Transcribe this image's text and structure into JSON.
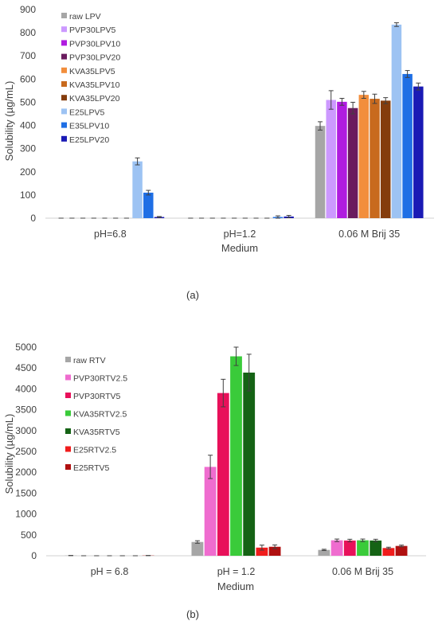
{
  "chart_data": [
    {
      "type": "bar",
      "caption": "(a)",
      "xlabel": "Medium",
      "ylabel": "Solubility (µg/mL)",
      "ylim": [
        0,
        900
      ],
      "yticks": [
        "0",
        "100",
        "200",
        "300",
        "400",
        "500",
        "600",
        "700",
        "800",
        "900"
      ],
      "grid": false,
      "legend": "top-left",
      "categories": [
        "pH=6.8",
        "pH=1.2",
        "0.06 M Brij 35"
      ],
      "series": [
        {
          "name": "raw LPV",
          "color": "#a6a6a6",
          "values": [
            0,
            0,
            398
          ],
          "errors": [
            0,
            0,
            18
          ]
        },
        {
          "name": "PVP30LPV5",
          "color": "#cc99ff",
          "values": [
            0,
            0,
            510
          ],
          "errors": [
            0,
            0,
            40
          ]
        },
        {
          "name": "PVP30LPV10",
          "color": "#b01ce0",
          "values": [
            0,
            0,
            502
          ],
          "errors": [
            0,
            0,
            15
          ]
        },
        {
          "name": "PVP30LPV20",
          "color": "#6a1b5e",
          "values": [
            0,
            0,
            475
          ],
          "errors": [
            0,
            0,
            25
          ]
        },
        {
          "name": "KVA35LPV5",
          "color": "#f28e3c",
          "values": [
            0,
            0,
            532
          ],
          "errors": [
            0,
            0,
            15
          ]
        },
        {
          "name": "KVA35LPV10",
          "color": "#c86a1e",
          "values": [
            0,
            0,
            515
          ],
          "errors": [
            0,
            0,
            20
          ]
        },
        {
          "name": "KVA35LPV20",
          "color": "#843c0c",
          "values": [
            0,
            0,
            507
          ],
          "errors": [
            0,
            0,
            13
          ]
        },
        {
          "name": "E25LPV5",
          "color": "#9dc3f3",
          "values": [
            245,
            0,
            835
          ],
          "errors": [
            15,
            0,
            8
          ]
        },
        {
          "name": "E35LPV10",
          "color": "#1f6fe5",
          "values": [
            110,
            5,
            622
          ],
          "errors": [
            10,
            5,
            15
          ]
        },
        {
          "name": "E25LPV20",
          "color": "#1a1ab5",
          "values": [
            5,
            7,
            568
          ],
          "errors": [
            2,
            5,
            15
          ]
        }
      ]
    },
    {
      "type": "bar",
      "caption": "(b)",
      "xlabel": "Medium",
      "ylabel": "Solubility (µg/mL)",
      "ylim": [
        0,
        5000
      ],
      "yticks": [
        "0",
        "500",
        "1000",
        "1500",
        "2000",
        "2500",
        "3000",
        "3500",
        "4000",
        "4500",
        "5000"
      ],
      "grid": false,
      "legend": "top-left",
      "categories": [
        "pH = 6.8",
        "pH = 1.2",
        "0.06 M Brij 35"
      ],
      "series": [
        {
          "name": "raw RTV",
          "color": "#a6a6a6",
          "values": [
            5,
            330,
            140
          ],
          "errors": [
            2,
            30,
            15
          ]
        },
        {
          "name": "PVP30RTV2.5",
          "color": "#ef6ccf",
          "values": [
            0,
            2130,
            370
          ],
          "errors": [
            0,
            280,
            30
          ]
        },
        {
          "name": "PVP30RTV5",
          "color": "#e8105a",
          "values": [
            0,
            3900,
            365
          ],
          "errors": [
            0,
            330,
            30
          ]
        },
        {
          "name": "KVA35RTV2.5",
          "color": "#3acb3a",
          "values": [
            0,
            4780,
            370
          ],
          "errors": [
            0,
            220,
            30
          ]
        },
        {
          "name": "KVA35RTV5",
          "color": "#156315",
          "values": [
            0,
            4390,
            365
          ],
          "errors": [
            0,
            440,
            30
          ]
        },
        {
          "name": "E25RTV2.5",
          "color": "#f01c1c",
          "values": [
            0,
            195,
            185
          ],
          "errors": [
            0,
            60,
            20
          ]
        },
        {
          "name": "E25RTV5",
          "color": "#b01010",
          "values": [
            5,
            215,
            235
          ],
          "errors": [
            2,
            45,
            20
          ]
        }
      ]
    }
  ]
}
